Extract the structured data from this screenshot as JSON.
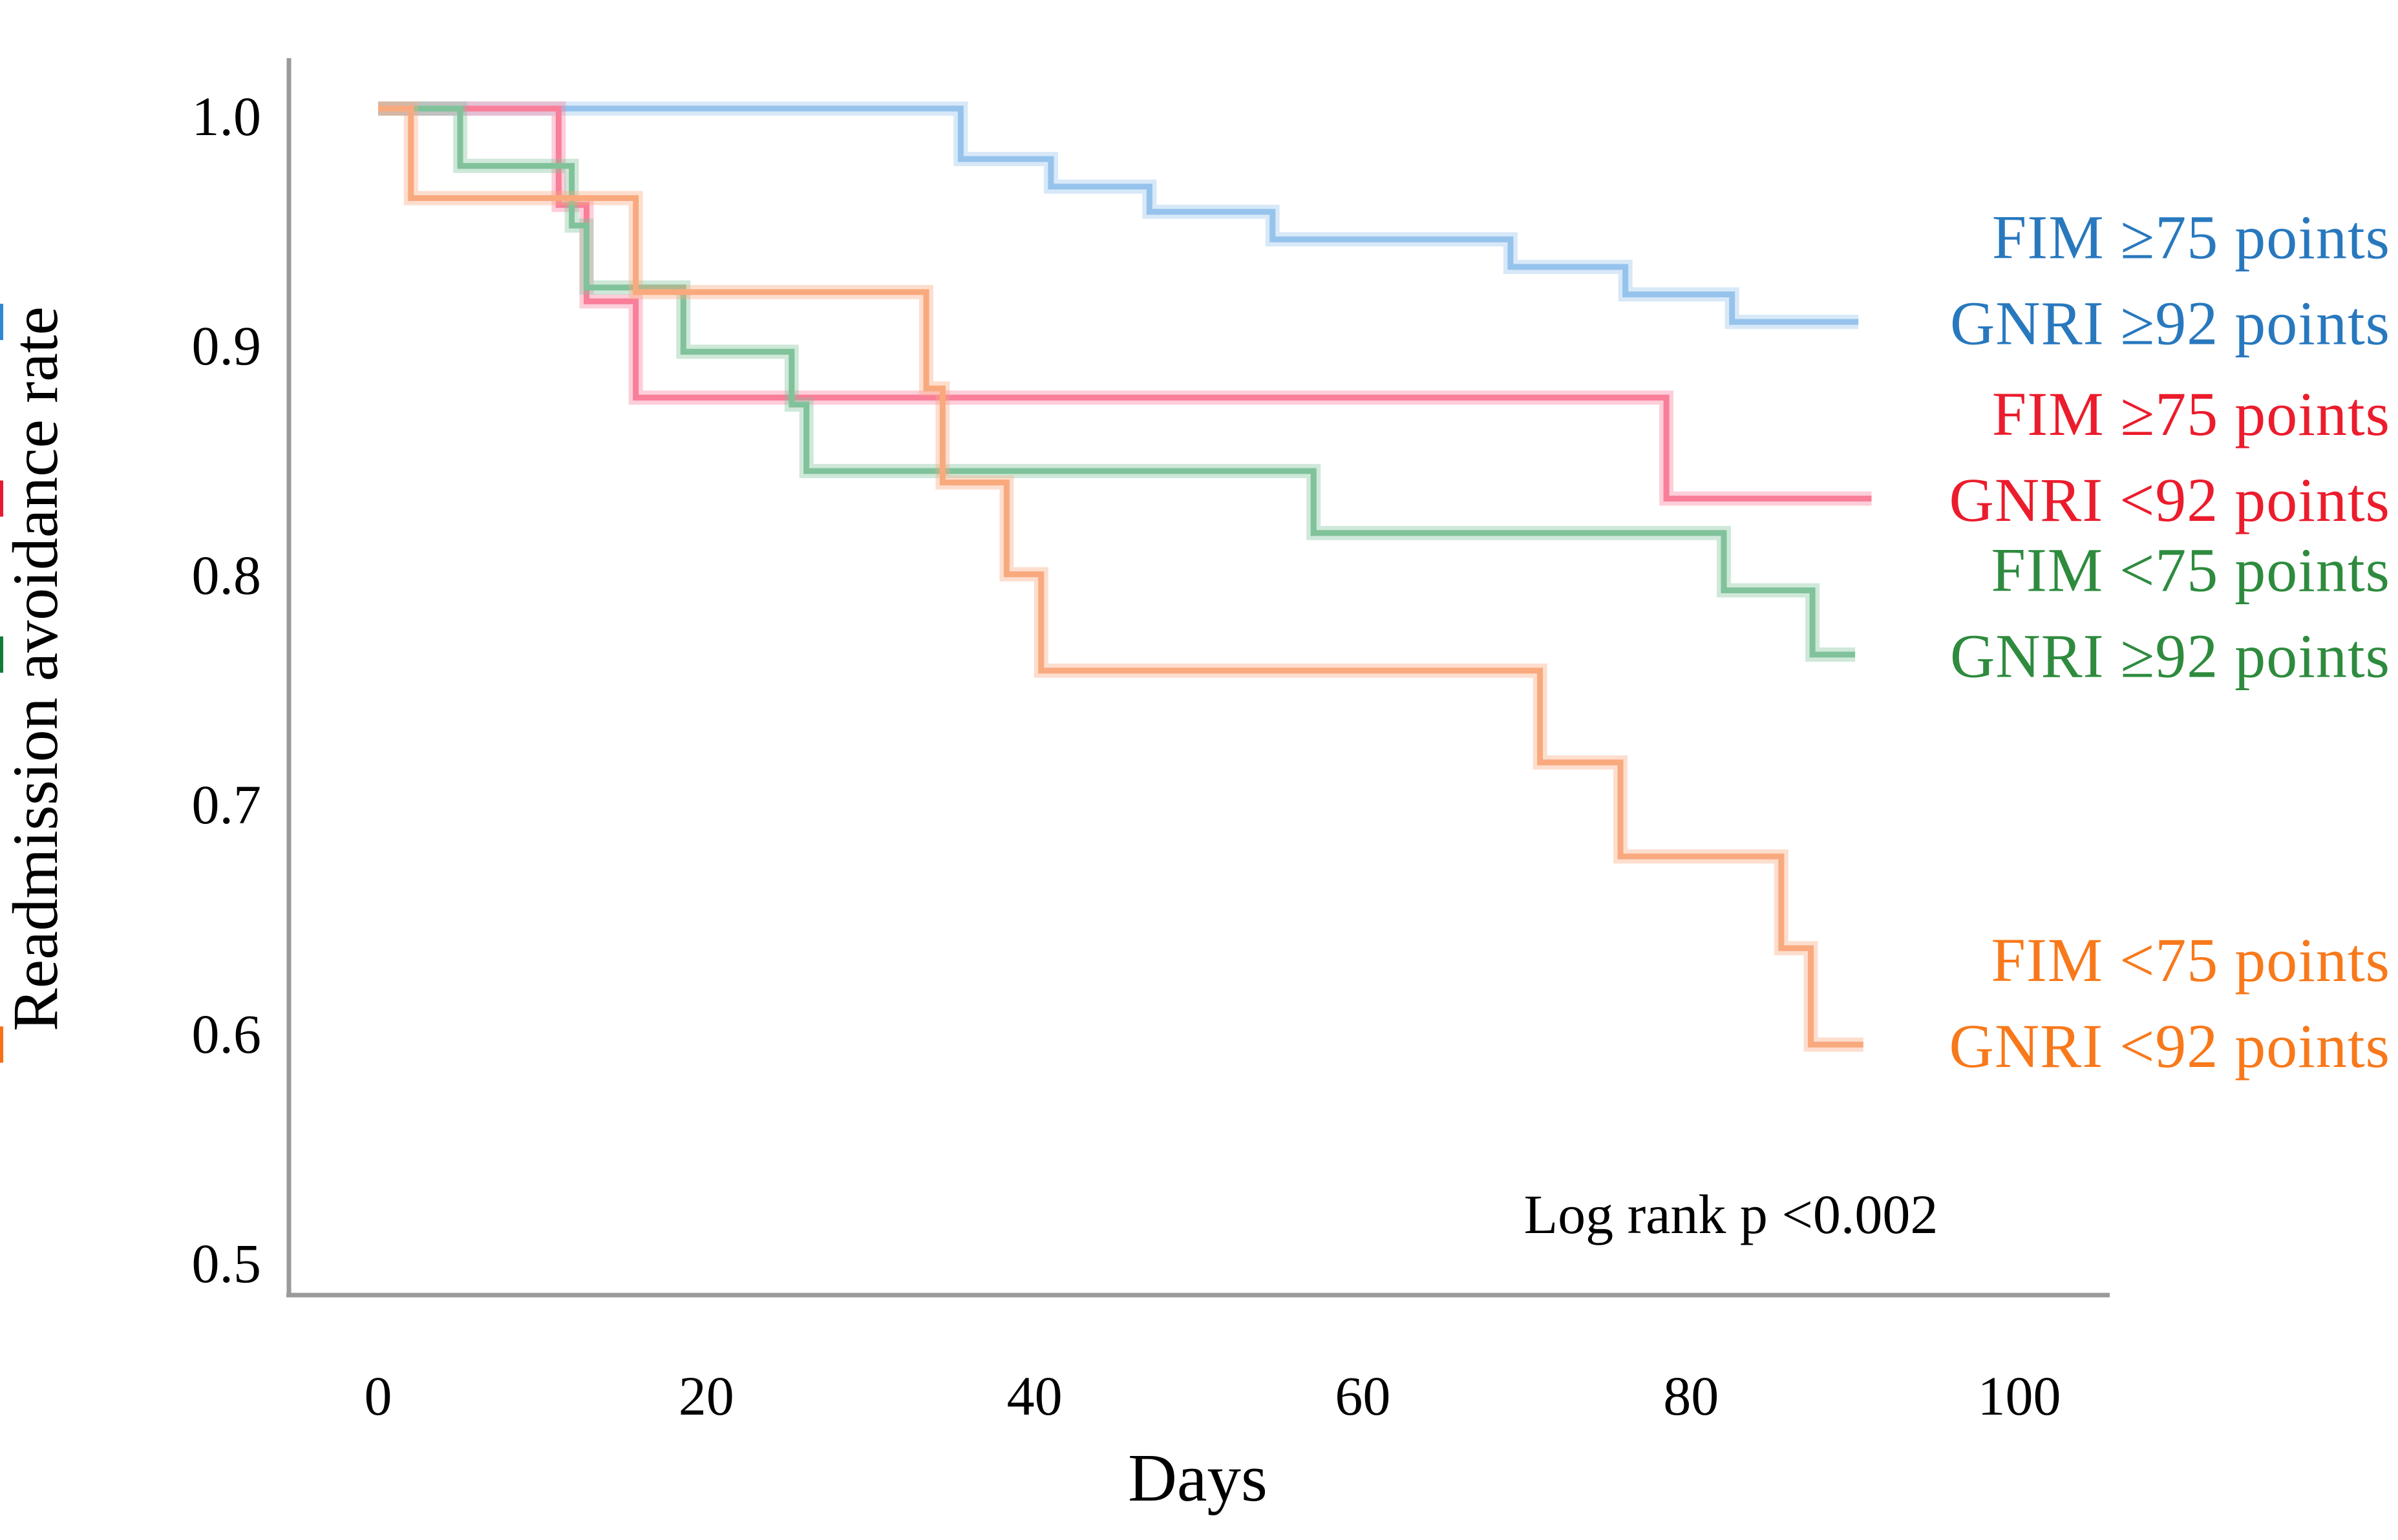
{
  "figure": {
    "ylabel": "Readmission avoidance rate",
    "xlabel": "Days",
    "annotation": "Log rank p <0.002"
  },
  "chart_data": {
    "type": "line",
    "subtype": "kaplan-meier-step-curves",
    "title": "",
    "xlabel": "Days",
    "ylabel": "Readmission avoidance rate",
    "xlim": [
      0,
      105
    ],
    "ylim": [
      0.5,
      1.0
    ],
    "xticks": [
      "0",
      "20",
      "40",
      "60",
      "80",
      "100"
    ],
    "yticks": [
      "1.0",
      "0.9",
      "0.8",
      "0.7",
      "0.6",
      "0.5"
    ],
    "grid": false,
    "legend_position": "right-of-curve-ends",
    "annotation": "Log rank p <0.002",
    "series": [
      {
        "id": "fim-ge75-gnri-ge92",
        "legend_lines": [
          "FIM ≥75 points",
          "GNRI ≥92 points"
        ],
        "curve_color": "#96c3ec",
        "text_color": "#2878be",
        "censor_color": "#2e86d4",
        "start_value": 1.0,
        "drops": [
          [
            35.5,
            0.978
          ],
          [
            41,
            0.966
          ],
          [
            47,
            0.955
          ],
          [
            54.5,
            0.943
          ],
          [
            69,
            0.931
          ],
          [
            76,
            0.919
          ],
          [
            82.5,
            0.907
          ]
        ],
        "end_day": 90.2,
        "censor_days": [
          88.5,
          89.6
        ]
      },
      {
        "id": "fim-ge75-gnri-lt92",
        "legend_lines": [
          "FIM ≥75 points",
          "GNRI <92 points"
        ],
        "curve_color": "#f97e9a",
        "text_color": "#eb1c2c",
        "censor_color": "#e81932",
        "start_value": 1.0,
        "drops": [
          [
            11,
            0.958
          ],
          [
            12.7,
            0.916
          ],
          [
            15.7,
            0.874
          ],
          [
            78.5,
            0.83
          ]
        ],
        "end_day": 91,
        "censor_days": [
          89.3,
          90.6
        ]
      },
      {
        "id": "fim-lt75-gnri-ge92",
        "legend_lines": [
          "FIM <75 points",
          "GNRI ≥92 points"
        ],
        "curve_color": "#80c29a",
        "text_color": "#2e8b3e",
        "censor_color": "#107c38",
        "start_value": 1.0,
        "drops": [
          [
            5,
            0.975
          ],
          [
            11.8,
            0.949
          ],
          [
            12.7,
            0.922
          ],
          [
            18.6,
            0.894
          ],
          [
            25.2,
            0.871
          ],
          [
            26.1,
            0.842
          ],
          [
            57,
            0.815
          ],
          [
            82,
            0.79
          ],
          [
            87.4,
            0.762
          ]
        ],
        "end_day": 90,
        "censor_days": [
          88.2,
          89.3
        ]
      },
      {
        "id": "fim-lt75-gnri-lt92",
        "legend_lines": [
          "FIM <75 points",
          "GNRI <92 points"
        ],
        "curve_color": "#f9a97e",
        "text_color": "#f8791b",
        "censor_color": "#f86f15",
        "start_value": 1.0,
        "drops": [
          [
            2,
            0.961
          ],
          [
            15.7,
            0.92
          ],
          [
            33.4,
            0.878
          ],
          [
            34.4,
            0.837
          ],
          [
            38.3,
            0.797
          ],
          [
            40.4,
            0.755
          ],
          [
            70.8,
            0.715
          ],
          [
            75.7,
            0.674
          ],
          [
            85.5,
            0.634
          ],
          [
            87.3,
            0.592
          ]
        ],
        "end_day": 90.5,
        "censor_days": [
          88.3,
          89.6
        ]
      }
    ]
  }
}
